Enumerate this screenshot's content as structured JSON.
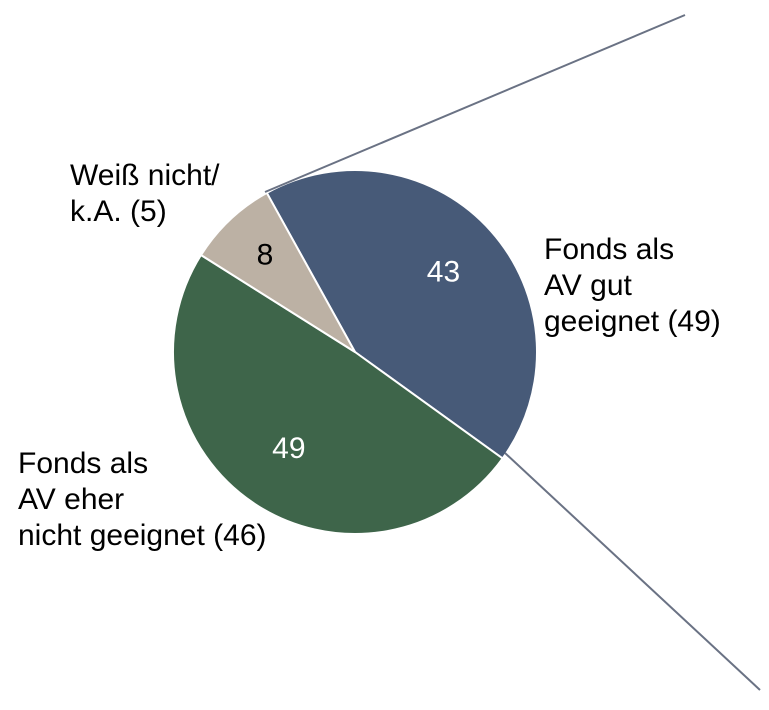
{
  "chart_data": {
    "type": "pie",
    "categories": [
      "Fonds als\nAV gut\ngeeignet (49)",
      "Fonds als\nAV eher\nnicht geeignet (46)",
      "Weiß nicht/\nk.A. (5)"
    ],
    "values": [
      43,
      49,
      8
    ],
    "colors": [
      "#475a78",
      "#3e654a",
      "#bcb1a4"
    ],
    "value_label_colors": [
      "#ffffff",
      "#ffffff",
      "#000000"
    ]
  }
}
